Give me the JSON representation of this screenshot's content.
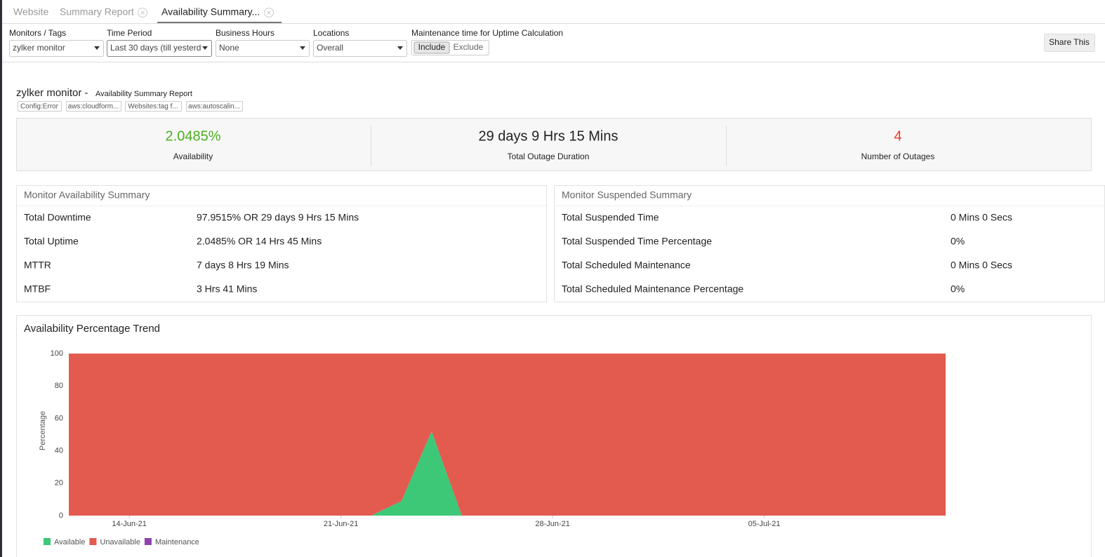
{
  "tabs": {
    "items": [
      "Website",
      "Summary Report",
      "Availability Summary..."
    ],
    "active": 2
  },
  "filters": [
    {
      "label": "Monitors / Tags",
      "value": "zylker monitor"
    },
    {
      "label": "Time Period",
      "value": "Last 30 days (till yesterd"
    },
    {
      "label": "Business Hours",
      "value": "None"
    },
    {
      "label": "Locations",
      "value": "Overall"
    }
  ],
  "maintenance": {
    "label": "Maintenance time for Uptime Calculation",
    "options": [
      "Include",
      "Exclude"
    ],
    "selected": 0
  },
  "share_button": "Share This",
  "report": {
    "title": "zylker monitor -",
    "subtitle": "Availability Summary Report",
    "tags": [
      "Config:Error",
      "aws:cloudform...",
      "Websites:tag f...",
      "aws:autoscalin..."
    ]
  },
  "stats": [
    {
      "value": "2.0485%",
      "label": "Availability",
      "color": "#4caf1e"
    },
    {
      "value": "29 days 9 Hrs 15 Mins",
      "label": "Total Outage Duration",
      "color": "#222222"
    },
    {
      "value": "4",
      "label": "Number of Outages",
      "color": "#e53a2f"
    }
  ],
  "availability_summary": {
    "title": "Monitor Availability Summary",
    "rows": [
      [
        "Total Downtime",
        "97.9515% OR 29 days 9 Hrs 15 Mins"
      ],
      [
        "Total Uptime",
        "2.0485% OR 14 Hrs 45 Mins"
      ],
      [
        "MTTR",
        "7 days 8 Hrs 19 Mins"
      ],
      [
        "MTBF",
        "3 Hrs 41 Mins"
      ]
    ]
  },
  "suspended_summary": {
    "title": "Monitor Suspended Summary",
    "rows": [
      [
        "Total Suspended Time",
        "0 Mins 0 Secs"
      ],
      [
        "Total Suspended Time Percentage",
        "0%"
      ],
      [
        "Total Scheduled Maintenance",
        "0 Mins 0 Secs"
      ],
      [
        "Total Scheduled Maintenance Percentage",
        "0%"
      ]
    ]
  },
  "chart_data": {
    "type": "stacked_area",
    "title": "Availability Percentage Trend",
    "y_label": "Percentage",
    "x": [
      "2021-06-12",
      "2021-06-13",
      "2021-06-14",
      "2021-06-15",
      "2021-06-16",
      "2021-06-17",
      "2021-06-18",
      "2021-06-19",
      "2021-06-20",
      "2021-06-21",
      "2021-06-22",
      "2021-06-23",
      "2021-06-24",
      "2021-06-25",
      "2021-06-26",
      "2021-06-27",
      "2021-06-28",
      "2021-06-29",
      "2021-06-30",
      "2021-07-01",
      "2021-07-02",
      "2021-07-03",
      "2021-07-04",
      "2021-07-05",
      "2021-07-06",
      "2021-07-07",
      "2021-07-08",
      "2021-07-09",
      "2021-07-10",
      "2021-07-11"
    ],
    "xlim": [
      "2021-06-12",
      "2021-07-11"
    ],
    "xticks": [
      {
        "value": "2021-06-14",
        "label": "14-Jun-21"
      },
      {
        "value": "2021-06-21",
        "label": "21-Jun-21"
      },
      {
        "value": "2021-06-28",
        "label": "28-Jun-21"
      },
      {
        "value": "2021-07-05",
        "label": "05-Jul-21"
      }
    ],
    "ylim": [
      0,
      100
    ],
    "yticks": [
      0,
      20,
      40,
      60,
      80,
      100
    ],
    "grid": false,
    "series": [
      {
        "name": "Available",
        "color": "#3dc878",
        "values": [
          0,
          0,
          0,
          0,
          0,
          0,
          0,
          0,
          0,
          0,
          0,
          9,
          52,
          0,
          0,
          0,
          0,
          0,
          0,
          0,
          0,
          0,
          0,
          0,
          0,
          0,
          0,
          0,
          0,
          0
        ]
      },
      {
        "name": "Unavailable",
        "color": "#e35a4f",
        "values": [
          100,
          100,
          100,
          100,
          100,
          100,
          100,
          100,
          100,
          100,
          100,
          91,
          48,
          100,
          100,
          100,
          100,
          100,
          100,
          100,
          100,
          100,
          100,
          100,
          100,
          100,
          100,
          100,
          100,
          100
        ]
      },
      {
        "name": "Maintenance",
        "color": "#8e44ad",
        "values": [
          0,
          0,
          0,
          0,
          0,
          0,
          0,
          0,
          0,
          0,
          0,
          0,
          0,
          0,
          0,
          0,
          0,
          0,
          0,
          0,
          0,
          0,
          0,
          0,
          0,
          0,
          0,
          0,
          0,
          0
        ]
      }
    ]
  }
}
